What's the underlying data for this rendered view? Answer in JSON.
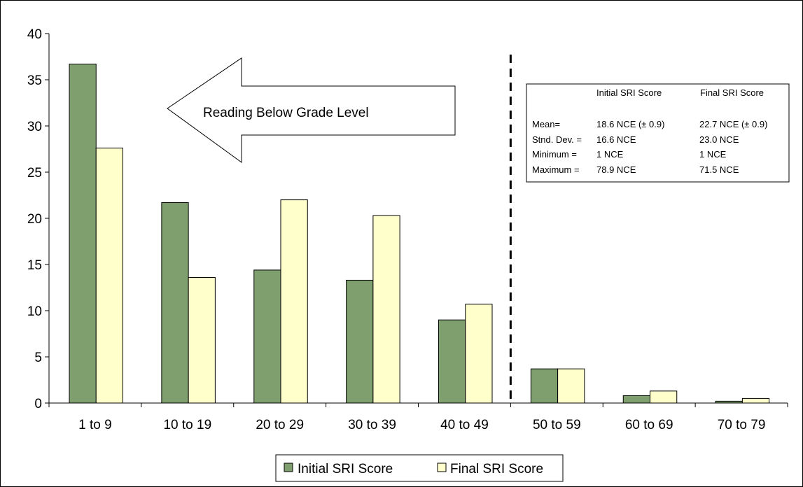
{
  "chart_data": {
    "type": "bar",
    "categories": [
      "1 to 9",
      "10 to 19",
      "20 to 29",
      "30 to 39",
      "40 to 49",
      "50 to 59",
      "60 to 69",
      "70 to 79"
    ],
    "series": [
      {
        "name": "Initial SRI Score",
        "values": [
          36.7,
          21.7,
          14.4,
          13.3,
          9.0,
          3.7,
          0.8,
          0.2
        ],
        "color": "#7f9f6f"
      },
      {
        "name": "Final SRI Score",
        "values": [
          27.6,
          13.6,
          22.0,
          20.3,
          10.7,
          3.7,
          1.3,
          0.5
        ],
        "color": "#ffffcc"
      }
    ],
    "ylim": [
      0,
      40
    ],
    "yticks": [
      0,
      5,
      10,
      15,
      20,
      25,
      30,
      35,
      40
    ],
    "title": "",
    "xlabel": "",
    "ylabel": "",
    "legend_position": "bottom",
    "grid": false,
    "divider_after_category": "40 to 49",
    "annotation_arrow_text": "Reading Below Grade Level",
    "stats_box": {
      "col_headers": [
        "Initial SRI Score",
        "Final SRI Score"
      ],
      "rows": [
        {
          "label": "Mean=",
          "initial": "18.6 NCE (± 0.9)",
          "final": "22.7  NCE (± 0.9)"
        },
        {
          "label": "Stnd. Dev. =",
          "initial": "16.6 NCE",
          "final": "23.0 NCE"
        },
        {
          "label": "Minimum =",
          "initial": "1 NCE",
          "final": "1 NCE"
        },
        {
          "label": "Maximum =",
          "initial": "78.9 NCE",
          "final": "71.5 NCE"
        }
      ]
    }
  }
}
